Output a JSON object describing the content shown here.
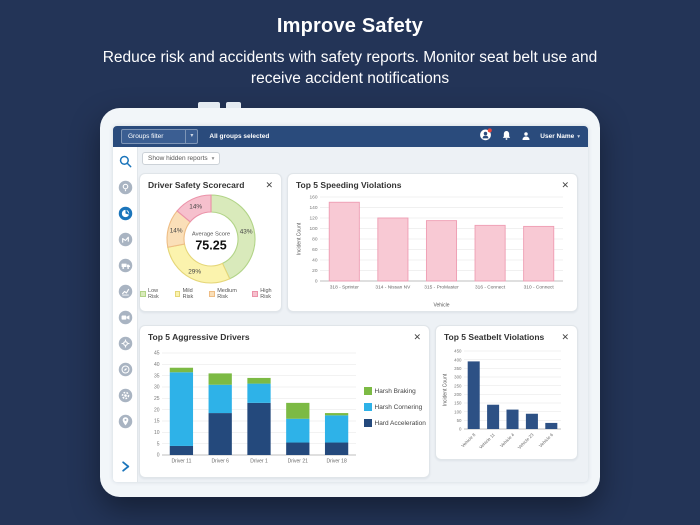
{
  "ui": {
    "close_glyph": "✕",
    "caret": "▾"
  },
  "page": {
    "title": "Improve Safety",
    "subtitle": "Reduce risk and accidents with safety reports. Monitor seat belt use and receive accident notifications",
    "background": "#233457"
  },
  "tablet": {
    "topbar": {
      "groups_filter_label": "Groups filter",
      "groups_selected": "All groups selected",
      "user_name": "User Name",
      "icons": [
        "support-icon",
        "bell-icon",
        "user-icon"
      ],
      "color": "#2a4b7c",
      "notification_dot_color": "#e8453c"
    },
    "toolbar": {
      "show_hidden_reports": "Show hidden reports"
    },
    "sidebar": {
      "active_color": "#1b75bb",
      "inactive_color": "#a9b4c2",
      "items": [
        "search",
        "support",
        "safety-dashboard",
        "routes",
        "vehicles",
        "reports",
        "video",
        "maintenance",
        "compass",
        "settings",
        "places",
        "expand"
      ]
    }
  },
  "chart_data": [
    {
      "type": "pie",
      "title": "Driver Safety Scorecard",
      "center_label": "Average Score",
      "center_value": "75.25",
      "segments": [
        {
          "name": "Low Risk",
          "value": 43,
          "label": "43%",
          "fill": "#d9eabb",
          "stroke": "#b2d488"
        },
        {
          "name": "Mild Risk",
          "value": 29,
          "label": "29%",
          "fill": "#fbf3ad",
          "stroke": "#e5d678"
        },
        {
          "name": "Medium Risk",
          "value": 14,
          "label": "14%",
          "fill": "#fadfb8",
          "stroke": "#eebd85"
        },
        {
          "name": "High Risk",
          "value": 14,
          "label": "14%",
          "fill": "#f6c0cd",
          "stroke": "#eb92a9"
        }
      ],
      "legend_position": "bottom"
    },
    {
      "type": "bar",
      "title": "Top 5 Speeding Violations",
      "categories": [
        "318 - Sprinter",
        "314 - Nissan NV",
        "315 - ProMaster",
        "316 - Connect",
        "310 - Connect"
      ],
      "values": [
        150,
        120,
        115,
        106,
        104
      ],
      "xlabel": "Vehicle",
      "ylabel": "Incident Count",
      "ylim": [
        0,
        160
      ],
      "ystep": 20,
      "grid": true,
      "bar_fill": "#f8c9d4",
      "bar_stroke": "#ee9db3"
    },
    {
      "type": "bar",
      "stacked": true,
      "title": "Top 5 Aggressive Drivers",
      "categories": [
        "Driver 11",
        "Driver 6",
        "Driver 1",
        "Driver 21",
        "Driver 18"
      ],
      "series": [
        {
          "name": "Hard Acceleration",
          "color": "#24497c",
          "values": [
            4,
            18.5,
            23,
            5.5,
            5.5
          ]
        },
        {
          "name": "Harsh Cornering",
          "color": "#2eb2e8",
          "values": [
            32.5,
            12.5,
            8.5,
            10.5,
            12
          ]
        },
        {
          "name": "Harsh Braking",
          "color": "#7cba44",
          "values": [
            2,
            5,
            2.5,
            7,
            1
          ]
        }
      ],
      "ylim": [
        0,
        45
      ],
      "ystep": 5,
      "grid": true,
      "legend_position": "right"
    },
    {
      "type": "bar",
      "title": "Top 5 Seatbelt Violations",
      "categories": [
        "Vehicle 8",
        "Vehicle 11",
        "Vehicle 4",
        "Vehicle 23",
        "Vehicle 6"
      ],
      "values": [
        390,
        140,
        112,
        88,
        35
      ],
      "ylabel": "Incident Count",
      "ylim": [
        0,
        450
      ],
      "ystep": 50,
      "grid": true,
      "bar_fill": "#2d5185",
      "rotate_labels": true
    }
  ]
}
